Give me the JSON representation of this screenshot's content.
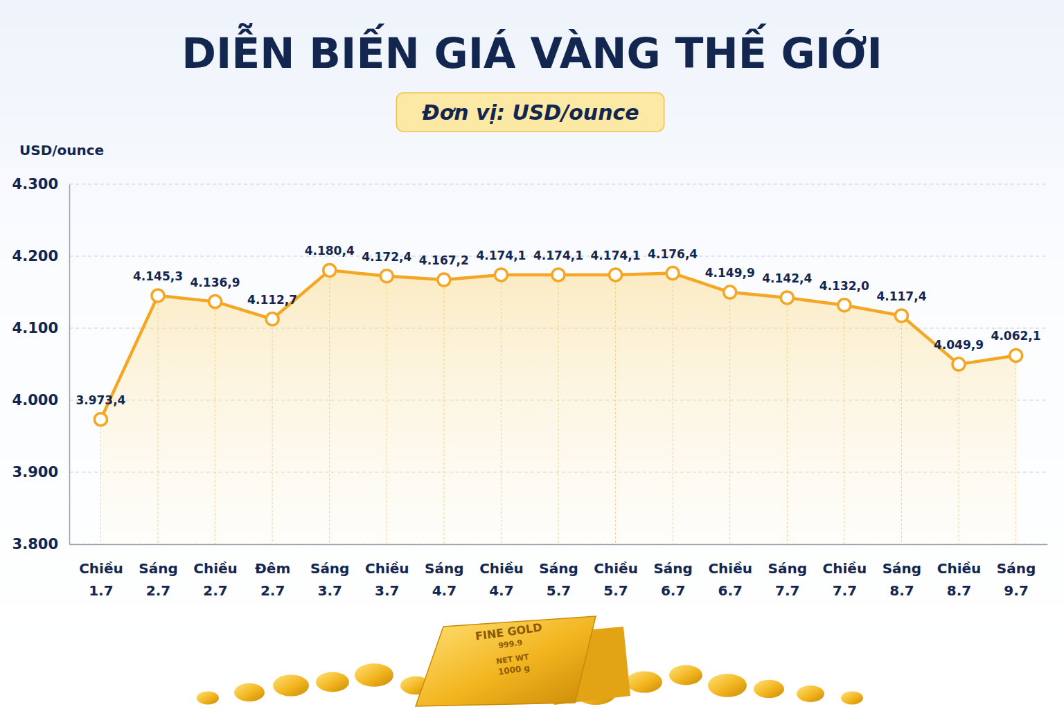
{
  "chart_data": {
    "type": "line",
    "title": "DIỄN BIẾN GIÁ VÀNG THẾ GIỚI",
    "subtitle": "Đơn vị: USD/ounce",
    "y_label": "USD/ounce",
    "categories": [
      "Chiều 1.7",
      "Sáng 2.7",
      "Chiều 2.7",
      "Đêm 2.7",
      "Sáng 3.7",
      "Chiều 3.7",
      "Sáng 4.7",
      "Chiều 4.7",
      "Sáng 5.7",
      "Chiều 5.7",
      "Sáng 6.7",
      "Chiều 6.7",
      "Sáng 7.7",
      "Chiều 7.7",
      "Sáng 8.7",
      "Chiều 8.7",
      "Sáng 9.7"
    ],
    "values": [
      3973.4,
      4145.3,
      4136.9,
      4112.7,
      4180.4,
      4172.4,
      4167.2,
      4174.1,
      4174.1,
      4174.1,
      4176.4,
      4149.9,
      4142.4,
      4132.0,
      4117.4,
      4049.9,
      4062.1
    ],
    "value_labels": [
      "3.973,4",
      "4.145,3",
      "4.136,9",
      "4.112,7",
      "4.180,4",
      "4.172,4",
      "4.167,2",
      "4.174,1",
      "4.174,1",
      "4.174,1",
      "4.176,4",
      "4.149,9",
      "4.142,4",
      "4.132,0",
      "4.117,4",
      "4.049,9",
      "4.062,1"
    ],
    "ylim": [
      3800,
      4300
    ],
    "yticks": [
      {
        "value": 3800,
        "label": "3.800"
      },
      {
        "value": 3900,
        "label": "3.900"
      },
      {
        "value": 4000,
        "label": "4.000"
      },
      {
        "value": 4100,
        "label": "4.100"
      },
      {
        "value": 4200,
        "label": "4.200"
      },
      {
        "value": 4300,
        "label": "4.300"
      }
    ],
    "grid": true,
    "data_labels": true,
    "marker": "circle",
    "color": "#F5A623",
    "annotations": [
      "FINE GOLD",
      "999.9",
      "NET WT",
      "1000 g"
    ]
  }
}
